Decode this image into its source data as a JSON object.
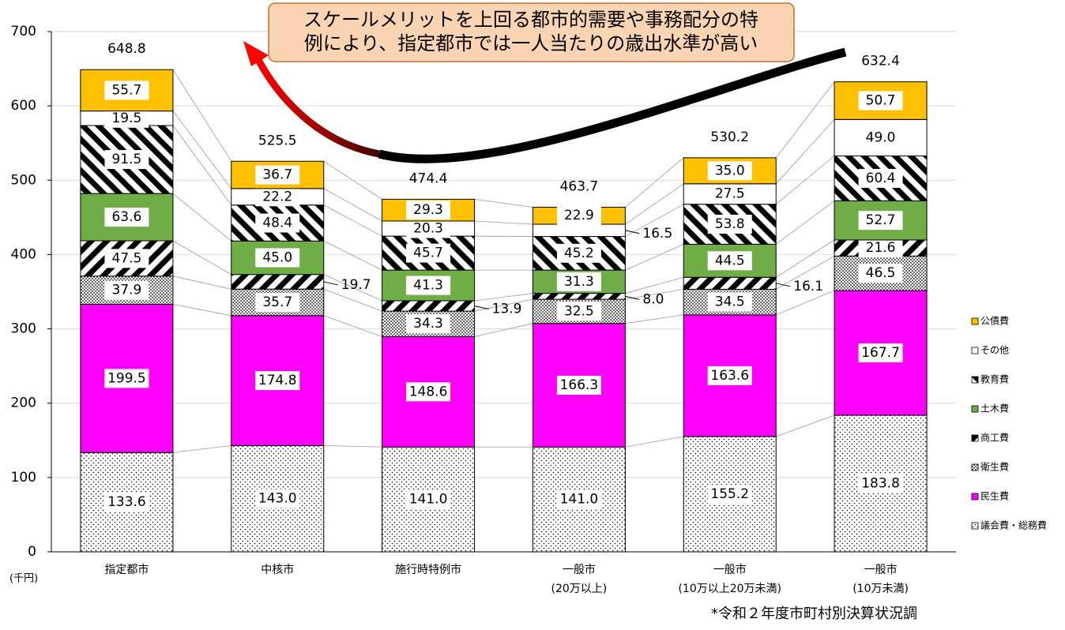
{
  "chart_data": {
    "type": "stacked_bar",
    "annotation": [
      "スケールメリットを上回る都市的需要や事務配分の特",
      "例により、指定都市では一人当たりの歳出水準が高い"
    ],
    "y_unit": "(千円)",
    "source": "*令和２年度市町村別決算状況調",
    "categories": [
      [
        "指定都市"
      ],
      [
        "中核市"
      ],
      [
        "施行時特例市"
      ],
      [
        "一般市",
        "(20万以上)"
      ],
      [
        "一般市",
        "(10万以上20万未満)"
      ],
      [
        "一般市",
        "(10万未満)"
      ]
    ],
    "ylim": [
      0,
      700
    ],
    "yticks": [
      0,
      100,
      200,
      300,
      400,
      500,
      600,
      700
    ],
    "grid": true,
    "series": [
      {
        "name": "議会費・総務費",
        "color": "#ffffff",
        "pattern": "sparse-dots",
        "values": [
          133.6,
          143.0,
          141.0,
          141.0,
          155.2,
          183.8
        ],
        "value_labels": [
          "133.6",
          "143.0",
          "141.0",
          "141.0",
          "155.2",
          "183.8"
        ]
      },
      {
        "name": "民生費",
        "color": "#ff00ff",
        "values": [
          199.5,
          174.8,
          148.6,
          166.3,
          163.6,
          167.7
        ],
        "value_labels": [
          "199.5",
          "174.8",
          "148.6",
          "166.3",
          "163.6",
          "167.7"
        ]
      },
      {
        "name": "衛生費",
        "color": "#ffffff",
        "pattern": "dense-dots",
        "values": [
          37.9,
          35.7,
          34.3,
          32.5,
          34.5,
          46.5
        ],
        "value_labels": [
          "37.9",
          "35.7",
          "34.3",
          "32.5",
          "34.5",
          "46.5"
        ]
      },
      {
        "name": "商工費",
        "color": "#ffffff",
        "pattern": "stripes-up",
        "values": [
          47.5,
          19.7,
          13.9,
          8.0,
          16.1,
          21.6
        ],
        "value_labels": [
          "47.5",
          "19.7",
          "13.9",
          "8.0",
          "16.1",
          "21.6"
        ]
      },
      {
        "name": "土木費",
        "color": "#70ad47",
        "values": [
          63.6,
          45.0,
          41.3,
          31.3,
          44.5,
          52.7
        ],
        "value_labels": [
          "63.6",
          "45.0",
          "41.3",
          "31.3",
          "44.5",
          "52.7"
        ]
      },
      {
        "name": "教育費",
        "color": "#ffffff",
        "pattern": "stripes-down",
        "values": [
          91.5,
          48.4,
          45.7,
          45.2,
          53.8,
          60.4
        ],
        "value_labels": [
          "91.5",
          "48.4",
          "45.7",
          "45.2",
          "53.8",
          "60.4"
        ]
      },
      {
        "name": "その他",
        "color": "#ffffff",
        "values": [
          19.5,
          22.2,
          20.3,
          16.5,
          27.5,
          49.0
        ],
        "value_labels": [
          "19.5",
          "22.2",
          "20.3",
          "16.5",
          "27.5",
          "49.0"
        ]
      },
      {
        "name": "公債費",
        "color": "#ffc000",
        "values": [
          55.7,
          36.7,
          29.3,
          22.9,
          35.0,
          50.7
        ],
        "value_labels": [
          "55.7",
          "36.7",
          "29.3",
          "22.9",
          "35.0",
          "50.7"
        ]
      }
    ],
    "totals": [
      648.8,
      525.5,
      474.4,
      463.7,
      530.2,
      632.4
    ],
    "total_labels": [
      "648.8",
      "525.5",
      "474.4",
      "463.7",
      "530.2",
      "632.4"
    ]
  }
}
